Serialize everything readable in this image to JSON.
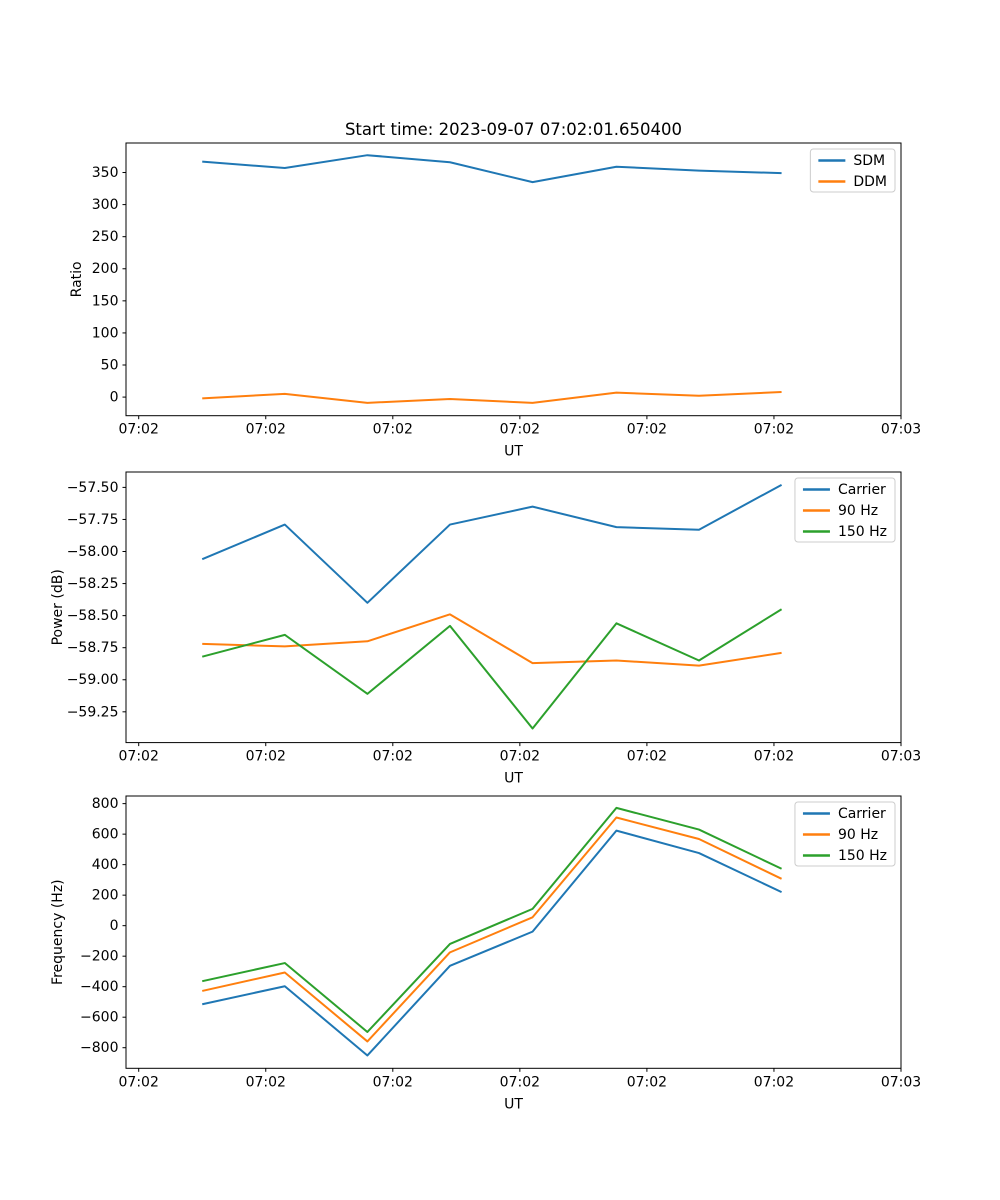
{
  "title": "Start time: 2023-09-07 07:02:01.650400",
  "chart_data": [
    {
      "id": "ratio",
      "type": "line",
      "ylabel": "Ratio",
      "xlabel": "UT",
      "legend_position": "upper right",
      "grid": false,
      "xlim": [
        -1,
        60
      ],
      "ylim": [
        -29,
        396
      ],
      "xticks": [
        0,
        10,
        20,
        30,
        40,
        50,
        60
      ],
      "xtick_labels": [
        "07:02",
        "07:02",
        "07:02",
        "07:02",
        "07:02",
        "07:02",
        "07:03"
      ],
      "yticks": [
        0,
        50,
        100,
        150,
        200,
        250,
        300,
        350
      ],
      "ytick_labels": [
        "0",
        "50",
        "100",
        "150",
        "200",
        "250",
        "300",
        "350"
      ],
      "x": [
        5.0,
        11.5,
        18.0,
        24.5,
        31.0,
        37.6,
        44.1,
        50.6
      ],
      "series": [
        {
          "name": "SDM",
          "color": "#1f77b4",
          "values": [
            367,
            357,
            377,
            366,
            335,
            359,
            353,
            349
          ]
        },
        {
          "name": "DDM",
          "color": "#ff7f0e",
          "values": [
            -2,
            5,
            -9,
            -3,
            -9,
            7,
            2,
            8
          ]
        }
      ]
    },
    {
      "id": "power",
      "type": "line",
      "ylabel": "Power (dB)",
      "xlabel": "UT",
      "legend_position": "upper right",
      "grid": false,
      "xlim": [
        -1,
        60
      ],
      "ylim": [
        -59.49,
        -57.38
      ],
      "xticks": [
        0,
        10,
        20,
        30,
        40,
        50,
        60
      ],
      "xtick_labels": [
        "07:02",
        "07:02",
        "07:02",
        "07:02",
        "07:02",
        "07:02",
        "07:03"
      ],
      "yticks": [
        -59.25,
        -59.0,
        -58.75,
        -58.5,
        -58.25,
        -58.0,
        -57.75,
        -57.5
      ],
      "ytick_labels": [
        "−59.25",
        "−59.00",
        "−58.75",
        "−58.50",
        "−58.25",
        "−58.00",
        "−57.75",
        "−57.50"
      ],
      "x": [
        5.0,
        11.5,
        18.0,
        24.5,
        31.0,
        37.6,
        44.1,
        50.6
      ],
      "series": [
        {
          "name": "Carrier",
          "color": "#1f77b4",
          "values": [
            -58.06,
            -57.79,
            -58.4,
            -57.79,
            -57.65,
            -57.81,
            -57.83,
            -57.48
          ]
        },
        {
          "name": "90 Hz",
          "color": "#ff7f0e",
          "values": [
            -58.72,
            -58.74,
            -58.7,
            -58.49,
            -58.87,
            -58.85,
            -58.89,
            -58.79
          ]
        },
        {
          "name": "150 Hz",
          "color": "#2ca02c",
          "values": [
            -58.82,
            -58.65,
            -59.11,
            -58.58,
            -59.38,
            -58.56,
            -58.85,
            -58.45
          ]
        }
      ]
    },
    {
      "id": "frequency",
      "type": "line",
      "ylabel": "Frequency (Hz)",
      "xlabel": "UT",
      "legend_position": "upper right",
      "grid": false,
      "xlim": [
        -1,
        60
      ],
      "ylim": [
        -935,
        850
      ],
      "xticks": [
        0,
        10,
        20,
        30,
        40,
        50,
        60
      ],
      "xtick_labels": [
        "07:02",
        "07:02",
        "07:02",
        "07:02",
        "07:02",
        "07:02",
        "07:03"
      ],
      "yticks": [
        -800,
        -600,
        -400,
        -200,
        0,
        200,
        400,
        600,
        800
      ],
      "ytick_labels": [
        "−800",
        "−600",
        "−400",
        "−200",
        "0",
        "200",
        "400",
        "600",
        "800"
      ],
      "x": [
        5.0,
        11.5,
        18.0,
        24.5,
        31.0,
        37.6,
        44.1,
        50.6
      ],
      "series": [
        {
          "name": "Carrier",
          "color": "#1f77b4",
          "values": [
            -515,
            -397,
            -851,
            -263,
            -39,
            623,
            476,
            220
          ]
        },
        {
          "name": "90 Hz",
          "color": "#ff7f0e",
          "values": [
            -428,
            -307,
            -759,
            -175,
            55,
            709,
            568,
            307
          ]
        },
        {
          "name": "150 Hz",
          "color": "#2ca02c",
          "values": [
            -364,
            -245,
            -697,
            -120,
            110,
            772,
            630,
            373
          ]
        }
      ]
    }
  ]
}
